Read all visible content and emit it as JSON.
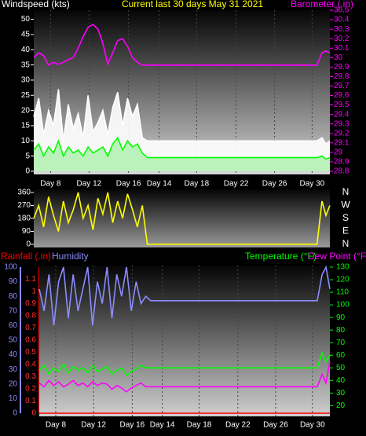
{
  "chart_data": [
    {
      "type": "line",
      "title": "Current last 30 days May 31 2021",
      "y_label": "Windspeed (kts)",
      "y2_label": "Barometer (.in)",
      "x": [
        0,
        0.5,
        1,
        1.5,
        2,
        2.5,
        3,
        3.5,
        4,
        4.5,
        5,
        5.5,
        6,
        6.5,
        7,
        7.5,
        8,
        8.5,
        9,
        9.5,
        10,
        10.5,
        11,
        11.5,
        28.7,
        29.2,
        29.6,
        30
      ],
      "xlim": [
        0,
        30
      ],
      "xticks": [
        {
          "value": 1.7,
          "label": "Day 8"
        },
        {
          "value": 5.6,
          "label": "Day 12"
        },
        {
          "value": 9.6,
          "label": "Day 16"
        },
        {
          "value": 12.7,
          "label": "Day 14"
        },
        {
          "value": 16.5,
          "label": "Day 18"
        },
        {
          "value": 20.5,
          "label": "Day 22"
        },
        {
          "value": 24.4,
          "label": "Day 26"
        },
        {
          "value": 28.2,
          "label": "Day 30"
        }
      ],
      "ylim": [
        0,
        53
      ],
      "yticks": [
        0,
        5,
        10,
        15,
        20,
        25,
        30,
        35,
        40,
        45,
        50
      ],
      "y2lim": [
        28.8,
        30.5
      ],
      "y2ticks": [
        28.8,
        28.9,
        29,
        29.1,
        29.2,
        29.3,
        29.4,
        29.5,
        29.6,
        29.7,
        29.8,
        29.9,
        30,
        30.1,
        30.2,
        30.3,
        30.4,
        30.5
      ],
      "series": [
        {
          "color": "#ffffff",
          "fill": "#ffffff",
          "values": [
            18,
            24,
            12,
            20,
            15,
            27,
            10,
            22,
            14,
            19,
            11,
            25,
            13,
            16,
            20,
            12,
            21,
            26,
            15,
            24,
            18,
            22,
            11,
            10,
            10,
            11,
            9,
            10
          ]
        },
        {
          "color": "#00ff00",
          "fill": "#b4f0b4",
          "values": [
            7,
            9,
            5,
            8,
            6,
            10,
            5,
            8,
            6,
            7,
            5,
            8,
            6,
            7,
            8,
            5,
            9,
            11,
            7,
            10,
            8,
            9,
            6,
            4.5,
            4.5,
            5,
            4,
            4.5
          ]
        },
        {
          "color": "#ff00ff",
          "axis": "y2",
          "values": [
            30.0,
            30.05,
            30.02,
            29.92,
            29.95,
            29.93,
            29.95,
            29.98,
            30.0,
            30.1,
            30.22,
            30.32,
            30.35,
            30.3,
            30.15,
            29.93,
            30.05,
            30.18,
            30.2,
            30.12,
            30.0,
            29.95,
            29.92,
            29.92,
            29.92,
            30.05,
            30.07,
            30.05
          ]
        }
      ]
    },
    {
      "type": "line",
      "x": [
        0,
        0.5,
        1,
        1.5,
        2,
        2.5,
        3,
        3.5,
        4,
        4.5,
        5,
        5.5,
        6,
        6.5,
        7,
        7.5,
        8,
        8.5,
        9,
        9.5,
        10,
        10.5,
        11,
        11.5,
        28.7,
        29.2,
        29.6,
        30
      ],
      "xlim": [
        0,
        30
      ],
      "ylim": [
        0,
        360
      ],
      "yticks": [
        0,
        90,
        180,
        270,
        360
      ],
      "y2lim": [
        0,
        360
      ],
      "y2ticks": [
        {
          "value": 360,
          "label": "N"
        },
        {
          "value": 270,
          "label": "W"
        },
        {
          "value": 180,
          "label": "S"
        },
        {
          "value": 90,
          "label": "E"
        },
        {
          "value": 0,
          "label": "N"
        }
      ],
      "series": [
        {
          "color": "#ffff00",
          "values": [
            180,
            270,
            120,
            330,
            200,
            90,
            300,
            150,
            240,
            360,
            180,
            270,
            100,
            320,
            210,
            360,
            150,
            300,
            180,
            350,
            240,
            120,
            270,
            0,
            0,
            300,
            200,
            270
          ]
        }
      ]
    },
    {
      "type": "line",
      "x": [
        0,
        0.5,
        1,
        1.5,
        2,
        2.5,
        3,
        3.5,
        4,
        4.5,
        5,
        5.5,
        6,
        6.5,
        7,
        7.5,
        8,
        8.5,
        9,
        9.5,
        10,
        10.5,
        11,
        11.5,
        28.7,
        29.2,
        29.6,
        30
      ],
      "xlim": [
        0,
        30
      ],
      "xticks": [
        {
          "value": 1.7,
          "label": "Day 8"
        },
        {
          "value": 5.6,
          "label": "Day 12"
        },
        {
          "value": 9.6,
          "label": "Day 16"
        },
        {
          "value": 12.7,
          "label": "Day 14"
        },
        {
          "value": 16.5,
          "label": "Day 18"
        },
        {
          "value": 20.5,
          "label": "Day 22"
        },
        {
          "value": 24.4,
          "label": "Day 26"
        },
        {
          "value": 28.2,
          "label": "Day 30"
        }
      ],
      "ylim": [
        0,
        100
      ],
      "yticks": [
        0,
        10,
        20,
        30,
        40,
        50,
        60,
        70,
        80,
        90,
        100
      ],
      "y2lim": [
        14,
        130
      ],
      "y2ticks": [
        20,
        30,
        40,
        50,
        60,
        70,
        80,
        90,
        100,
        110,
        120,
        130
      ],
      "y3lim": [
        0,
        1.2
      ],
      "y3ticks": [
        0,
        0.1,
        0.2,
        0.3,
        0.4,
        0.5,
        0.6,
        0.7,
        0.8,
        0.9,
        1,
        1.1
      ],
      "series": [
        {
          "name": "Rainfall (.in)",
          "color": "#ff0000",
          "axis": "y3",
          "values": [
            0,
            0,
            0,
            0,
            0,
            0,
            0,
            0,
            0,
            0,
            0,
            0,
            0,
            0,
            0,
            0,
            0,
            0,
            0,
            0,
            0,
            0,
            0,
            0,
            0,
            0,
            0,
            0
          ]
        },
        {
          "name": "Humidity",
          "color": "#8c8cff",
          "values": [
            85,
            70,
            95,
            60,
            90,
            100,
            65,
            95,
            70,
            85,
            100,
            60,
            90,
            75,
            100,
            65,
            95,
            80,
            100,
            70,
            90,
            75,
            80,
            77,
            77,
            95,
            100,
            85
          ]
        },
        {
          "name": "Temperature (°F)",
          "color": "#00ff00",
          "axis": "y2",
          "values": [
            48,
            52,
            45,
            50,
            47,
            53,
            46,
            51,
            48,
            50,
            46,
            52,
            47,
            49,
            51,
            45,
            48,
            50,
            44,
            47,
            49,
            52,
            50,
            50,
            50,
            62,
            55,
            60
          ]
        },
        {
          "name": "Dew Point (°F)",
          "color": "#ff00ff",
          "axis": "y2",
          "values": [
            38,
            35,
            40,
            36,
            39,
            35,
            37,
            40,
            36,
            38,
            35,
            39,
            36,
            38,
            37,
            33,
            36,
            34,
            31,
            34,
            36,
            38,
            35,
            35,
            35,
            45,
            38,
            55
          ]
        }
      ]
    }
  ]
}
